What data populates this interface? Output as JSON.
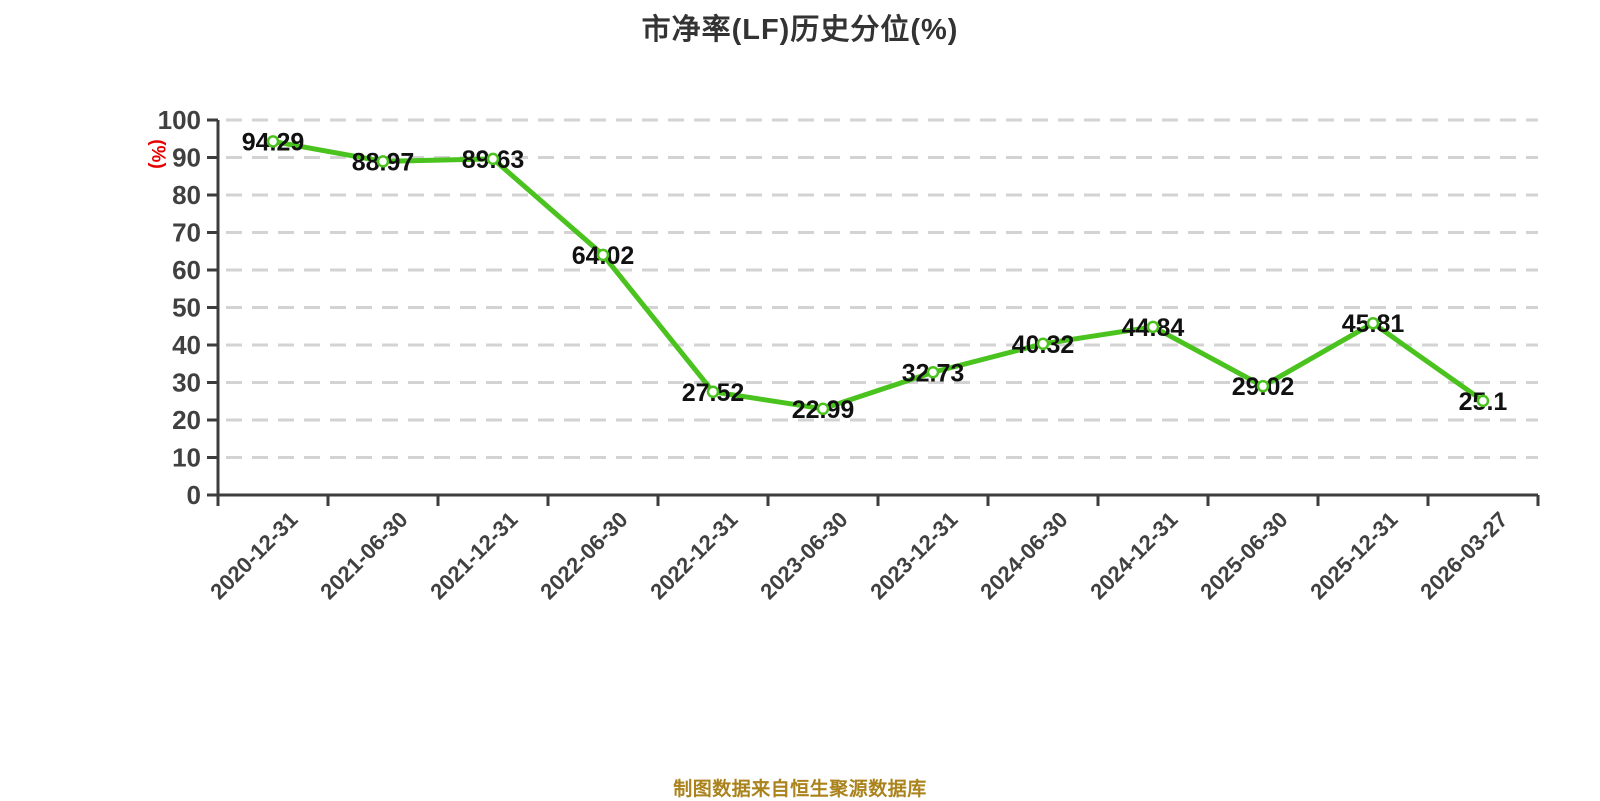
{
  "title": "市净率(LF)历史分位(%)",
  "caption": "制图数据来自恒生聚源数据库",
  "chart_data": {
    "type": "line",
    "title": "市净率(LF)历史分位(%)",
    "y_axis_name": "(%)",
    "categories": [
      "2020-12-31",
      "2021-06-30",
      "2021-12-31",
      "2022-06-30",
      "2022-12-31",
      "2023-06-30",
      "2023-12-31",
      "2024-06-30",
      "2024-12-31",
      "2025-06-30",
      "2025-12-31",
      "2026-03-27"
    ],
    "values": [
      94.29,
      88.97,
      89.63,
      64.02,
      27.52,
      22.99,
      32.73,
      40.32,
      44.84,
      29.02,
      45.81,
      25.1
    ],
    "ylim": [
      0,
      100
    ],
    "y_ticks": [
      0,
      10,
      20,
      30,
      40,
      50,
      60,
      70,
      80,
      90,
      100
    ],
    "grid": "horizontal-dashed",
    "legend": "none",
    "x_label_rotation_deg": 45,
    "data_labels": "centered-on-points",
    "colors": {
      "line": "#4bc31e",
      "marker_fill": "#ffffff",
      "grid": "#d3d3d3",
      "axis": "#3d3d3d",
      "tick_label": "#404040",
      "data_label": "#111111",
      "axis_name": "#e60000",
      "title": "#333333",
      "caption": "#ab831d"
    }
  }
}
